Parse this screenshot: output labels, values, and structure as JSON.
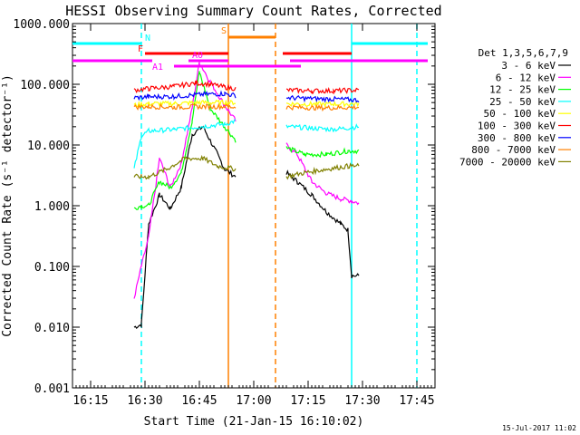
{
  "chart_data": {
    "type": "line",
    "title": "HESSI Observing Summary Count Rates, Corrected",
    "xlabel": "Start Time (21-Jan-15 16:10:02)",
    "ylabel": "Corrected Count Rate (s⁻¹ detector⁻¹)",
    "yscale": "log",
    "ylim": [
      0.001,
      1000
    ],
    "y_ticks": [
      "0.001",
      "0.010",
      "0.100",
      "1.000",
      "10.000",
      "100.000",
      "1000.000"
    ],
    "xlim_minutes_after_1610": [
      0,
      100
    ],
    "x_ticks": [
      "16:15",
      "16:30",
      "16:45",
      "17:00",
      "17:15",
      "17:30",
      "17:45"
    ],
    "grid": false,
    "legend_title": "Det 1,3,5,6,7,9",
    "legend_position": "right",
    "footer": "15-Jul-2017 11:02",
    "data_gap": [
      "16:56",
      "17:09"
    ],
    "series": [
      {
        "name": "3 - 6 keV",
        "color": "#000000",
        "x": [
          "16:27",
          "16:29",
          "16:31",
          "16:34",
          "16:37",
          "16:40",
          "16:43",
          "16:46",
          "16:50",
          "16:52",
          "16:55",
          "17:09",
          "17:12",
          "17:16",
          "17:20",
          "17:24",
          "17:26",
          "17:27",
          "17:29"
        ],
        "y": [
          0.01,
          0.011,
          0.5,
          1.5,
          0.9,
          2.0,
          15,
          20,
          7,
          4,
          3,
          3.5,
          2.5,
          1.5,
          0.8,
          0.5,
          0.4,
          0.07,
          0.07
        ]
      },
      {
        "name": "6 - 12 keV",
        "color": "#ff00ff",
        "x": [
          "16:27",
          "16:29",
          "16:31",
          "16:34",
          "16:37",
          "16:40",
          "16:43",
          "16:45",
          "16:48",
          "16:52",
          "16:55",
          "17:09",
          "17:12",
          "17:16",
          "17:20",
          "17:24",
          "17:27",
          "17:29"
        ],
        "y": [
          0.03,
          0.1,
          0.3,
          6,
          2,
          5,
          40,
          230,
          110,
          45,
          25,
          10,
          7,
          2.5,
          1.6,
          1.3,
          1.2,
          1.1
        ]
      },
      {
        "name": "12 - 25 keV",
        "color": "#00ff00",
        "x": [
          "16:27",
          "16:29",
          "16:31",
          "16:34",
          "16:37",
          "16:40",
          "16:43",
          "16:45",
          "16:48",
          "16:52",
          "16:55",
          "17:09",
          "17:14",
          "17:20",
          "17:26",
          "17:29"
        ],
        "y": [
          0.9,
          1.0,
          1.0,
          2.5,
          2.0,
          3.5,
          25,
          160,
          40,
          20,
          12,
          9,
          7,
          7,
          8,
          8
        ]
      },
      {
        "name": "25 - 50 keV",
        "color": "#00ffff",
        "x": [
          "16:27",
          "16:29",
          "16:31",
          "16:38",
          "16:45",
          "16:52",
          "16:55",
          "17:09",
          "17:16",
          "17:22",
          "17:29"
        ],
        "y": [
          4,
          14,
          17,
          18,
          20,
          22,
          25,
          20,
          19,
          18,
          20
        ]
      },
      {
        "name": "50 - 100 keV",
        "color": "#ffff00",
        "x": [
          "16:27",
          "16:31",
          "16:38",
          "16:45",
          "16:52",
          "16:55",
          "17:09",
          "17:16",
          "17:22",
          "17:29"
        ],
        "y": [
          45,
          48,
          48,
          50,
          50,
          50,
          48,
          47,
          47,
          48
        ]
      },
      {
        "name": "100 - 300 keV",
        "color": "#ff0000",
        "x": [
          "16:27",
          "16:31",
          "16:38",
          "16:44",
          "16:48",
          "16:52",
          "16:55",
          "17:09",
          "17:16",
          "17:22",
          "17:29"
        ],
        "y": [
          80,
          85,
          92,
          105,
          100,
          90,
          85,
          80,
          78,
          78,
          80
        ]
      },
      {
        "name": "300 - 800 keV",
        "color": "#0000ff",
        "x": [
          "16:27",
          "16:31",
          "16:38",
          "16:45",
          "16:52",
          "16:55",
          "17:09",
          "17:16",
          "17:22",
          "17:29"
        ],
        "y": [
          60,
          62,
          63,
          68,
          70,
          65,
          60,
          58,
          57,
          55
        ]
      },
      {
        "name": "800 - 7000 keV",
        "color": "#ff8000",
        "x": [
          "16:27",
          "16:31",
          "16:38",
          "16:45",
          "16:52",
          "16:55",
          "17:09",
          "17:16",
          "17:22",
          "17:29"
        ],
        "y": [
          42,
          43,
          42,
          43,
          43,
          42,
          42,
          41,
          41,
          42
        ]
      },
      {
        "name": "7000 - 20000 keV",
        "color": "#808000",
        "x": [
          "16:27",
          "16:29",
          "16:31",
          "16:36",
          "16:41",
          "16:46",
          "16:50",
          "16:55",
          "17:09",
          "17:14",
          "17:20",
          "17:26",
          "17:29"
        ],
        "y": [
          3,
          3,
          3,
          4,
          6,
          6,
          4.5,
          4,
          3,
          3.5,
          4,
          4.5,
          4.5
        ]
      }
    ],
    "vlines": [
      {
        "x": "16:29",
        "color": "#00ffff",
        "style": "dashed"
      },
      {
        "x": "16:53",
        "color": "#ff8000",
        "style": "solid"
      },
      {
        "x": "17:06",
        "color": "#ff8000",
        "style": "dashed"
      },
      {
        "x": "17:27",
        "color": "#00ffff",
        "style": "solid"
      },
      {
        "x": "17:45",
        "color": "#00ffff",
        "style": "dashed"
      }
    ],
    "flag_bars": [
      {
        "label": "N",
        "color": "#00ffff",
        "segments": [
          [
            "16:10",
            "16:29"
          ],
          [
            "17:27",
            "17:48"
          ]
        ]
      },
      {
        "label": "S",
        "color": "#ff8000",
        "segments": [
          [
            "16:53",
            "17:06"
          ]
        ]
      },
      {
        "label": "F",
        "color": "#ff0000",
        "segments": [
          [
            "16:30",
            "16:53"
          ],
          [
            "17:08",
            "17:27"
          ]
        ]
      },
      {
        "label": "A0",
        "color": "#ff00ff",
        "segments": [
          [
            "16:10",
            "16:32"
          ],
          [
            "16:42",
            "16:53"
          ],
          [
            "17:10",
            "17:48"
          ]
        ]
      },
      {
        "label": "A1",
        "color": "#ff00ff",
        "segments": [
          [
            "16:38",
            "17:13"
          ]
        ]
      }
    ]
  }
}
